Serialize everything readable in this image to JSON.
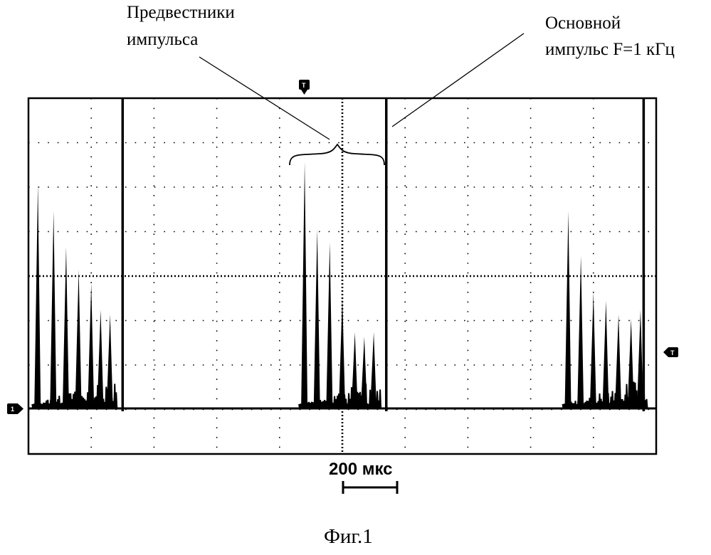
{
  "annotations": {
    "precursor": {
      "line1": "Предвестники",
      "line2": "импульса"
    },
    "main_pulse": {
      "line1": "Основной",
      "line2": "импульс F=1 кГц"
    }
  },
  "scale_bar": {
    "label": "200 мкс"
  },
  "caption": "Фиг.1",
  "markers": {
    "trigger_top": "T",
    "trigger_right": "T",
    "channel": "1"
  },
  "colors": {
    "trace": "#000000",
    "grid": "#000000",
    "background": "#ffffff"
  },
  "chart_data": {
    "type": "line",
    "grid": {
      "divisions_x": 10,
      "divisions_y": 8
    },
    "time_per_division": "200 мкс",
    "main_pulse_frequency": "F=1 кГц",
    "main_pulses_x_div": [
      1.5,
      5.7,
      9.8
    ],
    "precursor_groups": [
      {
        "peaks_x_div": [
          0.15,
          0.4,
          0.6,
          0.8,
          1.0,
          1.15,
          1.3
        ],
        "peaks_y_div": [
          5.0,
          4.4,
          3.6,
          3.1,
          2.8,
          2.2,
          2.1
        ]
      },
      {
        "peaks_x_div": [
          4.4,
          4.6,
          4.8,
          5.0,
          5.2,
          5.35,
          5.5
        ],
        "peaks_y_div": [
          5.5,
          4.0,
          3.7,
          2.5,
          1.7,
          1.6,
          1.7
        ]
      },
      {
        "peaks_x_div": [
          8.6,
          8.8,
          9.0,
          9.2,
          9.4,
          9.6,
          9.75
        ],
        "peaks_y_div": [
          4.4,
          3.4,
          2.6,
          2.4,
          2.1,
          2.0,
          2.2
        ]
      }
    ],
    "baseline_y_div": 0
  }
}
